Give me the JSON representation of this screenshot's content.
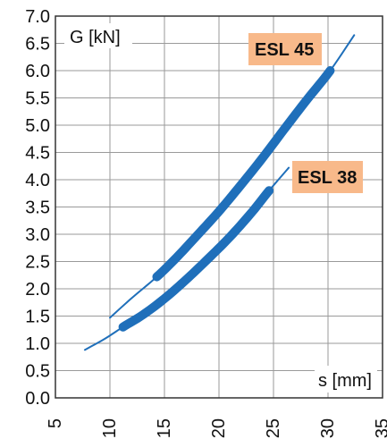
{
  "chart_data": {
    "type": "line",
    "title": "",
    "xlabel": "s [mm]",
    "ylabel": "G [kN]",
    "xlim": [
      5,
      35
    ],
    "ylim": [
      0.0,
      7.0
    ],
    "x_ticks": [
      "5",
      "10",
      "15",
      "20",
      "25",
      "30",
      "35"
    ],
    "y_ticks": [
      "0.0",
      "0.5",
      "1.0",
      "1.5",
      "2.0",
      "2.5",
      "3.0",
      "3.5",
      "4.0",
      "4.5",
      "5.0",
      "5.5",
      "6.0",
      "6.5",
      "7.0"
    ],
    "grid": true,
    "series": [
      {
        "name": "ESL 45",
        "color": "#1f6fba",
        "label_color": "#f8b98a",
        "thin_range": [
          10.0,
          32.4
        ],
        "thick_range": [
          14.3,
          30.2
        ],
        "x": [
          10.0,
          12.0,
          14.3,
          16.0,
          18.0,
          20.0,
          22.0,
          24.0,
          26.0,
          28.0,
          30.2,
          32.4
        ],
        "y": [
          1.47,
          1.83,
          2.22,
          2.55,
          2.98,
          3.42,
          3.9,
          4.4,
          4.93,
          5.45,
          6.0,
          6.65
        ]
      },
      {
        "name": "ESL 38",
        "color": "#1f6fba",
        "label_color": "#f8b98a",
        "thin_range": [
          7.7,
          26.4
        ],
        "thick_range": [
          11.2,
          24.6
        ],
        "x": [
          7.7,
          9.5,
          11.2,
          13.0,
          15.0,
          17.0,
          19.0,
          21.0,
          23.0,
          24.6,
          26.4
        ],
        "y": [
          0.88,
          1.08,
          1.3,
          1.52,
          1.82,
          2.17,
          2.55,
          2.95,
          3.4,
          3.8,
          4.22
        ]
      }
    ]
  }
}
